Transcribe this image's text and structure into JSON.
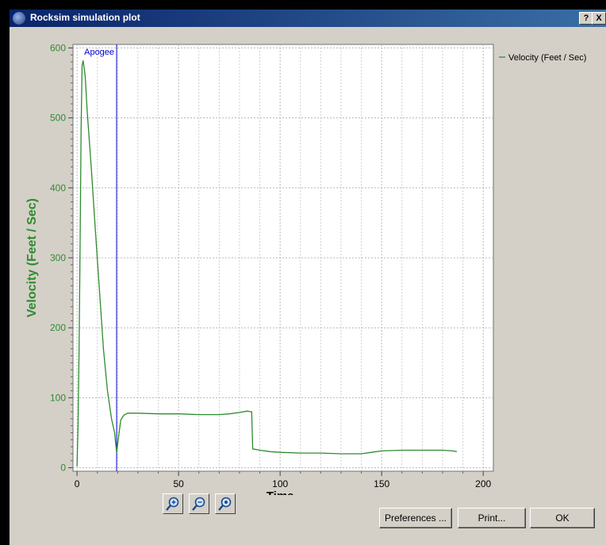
{
  "window": {
    "title": "Rocksim simulation plot",
    "help_label": "?",
    "close_label": "X"
  },
  "buttons": {
    "preferences": "Preferences ...",
    "print": "Print...",
    "ok": "OK"
  },
  "zoom_icons": [
    "zoom-in-icon",
    "zoom-out-icon",
    "zoom-reset-icon"
  ],
  "chart_data": {
    "type": "line",
    "title": "",
    "xlabel": "Time",
    "ylabel": "Velocity (Feet / Sec)",
    "xlim": [
      -2,
      205
    ],
    "ylim": [
      -5,
      605
    ],
    "x_ticks": [
      0,
      50,
      100,
      150,
      200
    ],
    "y_ticks": [
      0,
      100,
      200,
      300,
      400,
      500,
      600
    ],
    "grid": true,
    "legend": "right",
    "annotation": {
      "label": "Apogee",
      "x": 19.5,
      "color": "#0000cc"
    },
    "series": [
      {
        "name": "Velocity (Feet / Sec)",
        "color": "#2e8b2e",
        "x": [
          0,
          0.5,
          1,
          1.5,
          2,
          2.5,
          3,
          4,
          5,
          7,
          9,
          11,
          13,
          15,
          17,
          18.5,
          19.5,
          20.5,
          21.5,
          23,
          25,
          30,
          40,
          50,
          60,
          70,
          75,
          80,
          84,
          85.5,
          86,
          86.5,
          90,
          95,
          100,
          110,
          120,
          130,
          140,
          145,
          150,
          160,
          170,
          175,
          180,
          185,
          187
        ],
        "y": [
          2,
          60,
          170,
          320,
          480,
          575,
          582,
          560,
          510,
          430,
          340,
          255,
          170,
          110,
          70,
          50,
          22,
          45,
          68,
          75,
          78,
          78,
          77,
          77,
          76,
          76,
          77,
          79,
          81,
          80,
          80,
          27,
          25,
          23,
          22,
          21,
          21,
          20,
          20,
          22,
          24,
          25,
          25,
          25,
          25,
          24,
          23
        ]
      }
    ]
  }
}
